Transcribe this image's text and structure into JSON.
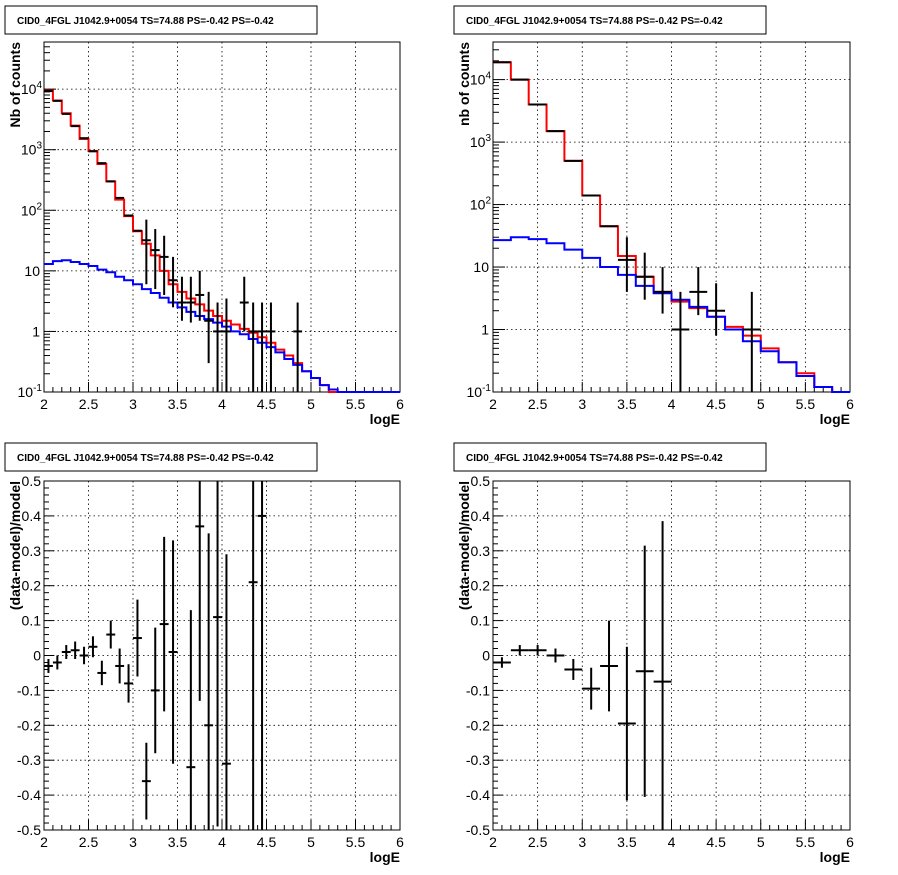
{
  "chart_data": [
    {
      "type": "line",
      "title": "CID0_4FGL J1042.9+0054 TS=74.88 PS=-0.42 PS=-0.42",
      "xlabel": "logE",
      "ylabel": "Nb of counts",
      "xlim": [
        2,
        6
      ],
      "ylim": [
        0.1,
        60000
      ],
      "yscale": "log",
      "grid": true,
      "x_ticks": [
        "2",
        "2.5",
        "3",
        "3.5",
        "4",
        "4.5",
        "5",
        "5.5",
        "6"
      ],
      "y_ticks": [
        "10^-1",
        "1",
        "10",
        "10^2",
        "10^3",
        "10^4"
      ],
      "binwidth": 0.1,
      "series": [
        {
          "color": "#ff0000",
          "kind": "hist",
          "x": [
            2.05,
            2.15,
            2.25,
            2.35,
            2.45,
            2.55,
            2.65,
            2.75,
            2.85,
            2.95,
            3.05,
            3.15,
            3.25,
            3.35,
            3.45,
            3.55,
            3.65,
            3.75,
            3.85,
            3.95,
            4.05,
            4.15,
            4.25,
            4.35,
            4.45,
            4.55,
            4.65,
            4.75,
            4.85,
            4.95,
            5.05,
            5.15,
            5.25,
            5.35,
            5.45,
            5.55,
            5.65,
            5.75,
            5.85,
            5.95
          ],
          "values": [
            9500,
            6500,
            4000,
            2500,
            1500,
            950,
            580,
            300,
            150,
            80,
            45,
            28,
            18,
            10,
            6,
            4.5,
            3.5,
            2.8,
            2.2,
            1.8,
            1.5,
            1.3,
            1.1,
            0.95,
            0.8,
            0.65,
            0.5,
            0.4,
            0.3,
            0.22,
            0.17,
            0.13,
            0.1,
            0.1,
            0.1,
            0.1,
            0.1,
            0.1,
            0.1,
            0.1
          ]
        },
        {
          "color": "#0000ff",
          "kind": "hist",
          "x": [
            2.05,
            2.15,
            2.25,
            2.35,
            2.45,
            2.55,
            2.65,
            2.75,
            2.85,
            2.95,
            3.05,
            3.15,
            3.25,
            3.35,
            3.45,
            3.55,
            3.65,
            3.75,
            3.85,
            3.95,
            4.05,
            4.15,
            4.25,
            4.35,
            4.45,
            4.55,
            4.65,
            4.75,
            4.85,
            4.95,
            5.05,
            5.15,
            5.25,
            5.35,
            5.45,
            5.55,
            5.65,
            5.75,
            5.85,
            5.95
          ],
          "values": [
            13,
            14.5,
            15,
            14,
            13,
            12,
            10.5,
            9.5,
            8,
            7,
            6,
            5,
            4.3,
            3.6,
            3,
            2.5,
            2.1,
            1.8,
            1.6,
            1.4,
            1.2,
            1.0,
            0.9,
            0.75,
            0.65,
            0.55,
            0.45,
            0.35,
            0.28,
            0.22,
            0.17,
            0.13,
            0.11,
            0.1,
            0.1,
            0.1,
            0.1,
            0.1,
            0.1,
            0.1
          ]
        },
        {
          "color": "#000000",
          "kind": "errorbar",
          "x": [
            3.15,
            3.25,
            3.35,
            3.45,
            3.55,
            3.65,
            3.75,
            3.85,
            3.95,
            4.05,
            4.25,
            4.35,
            4.45,
            4.55,
            4.85
          ],
          "values": [
            32,
            22,
            17,
            7,
            3,
            3,
            4,
            1.5,
            1,
            1,
            3,
            1,
            1,
            1,
            1
          ],
          "err_lo": [
            26,
            17,
            13,
            4.5,
            1.5,
            1.6,
            2.5,
            1.2,
            0.9,
            0.9,
            2,
            0.9,
            0.9,
            0.9,
            0.9
          ],
          "err_hi": [
            38,
            27,
            21,
            10,
            5,
            5,
            6,
            3,
            2,
            2.5,
            5,
            2,
            2,
            2,
            2
          ]
        }
      ],
      "upper_points": {
        "x": [
          2.05,
          2.15,
          2.25,
          2.35,
          2.45,
          2.55,
          2.65,
          2.75,
          2.85,
          2.95,
          3.05
        ],
        "values": [
          9300,
          6400,
          3900,
          2450,
          1550,
          940,
          600,
          300,
          160,
          82,
          46
        ]
      }
    },
    {
      "type": "line",
      "title": "CID0_4FGL J1042.9+0054 TS=74.88 PS=-0.42 PS=-0.42",
      "xlabel": "logE",
      "ylabel": "nb of counts",
      "xlim": [
        2,
        6
      ],
      "ylim": [
        0.1,
        40000
      ],
      "yscale": "log",
      "grid": true,
      "x_ticks": [
        "2",
        "2.5",
        "3",
        "3.5",
        "4",
        "4.5",
        "5",
        "5.5",
        "6"
      ],
      "y_ticks": [
        "10^-1",
        "1",
        "10",
        "10^2",
        "10^3",
        "10^4"
      ],
      "binwidth": 0.2,
      "series": [
        {
          "color": "#ff0000",
          "kind": "hist",
          "x": [
            2.1,
            2.3,
            2.5,
            2.7,
            2.9,
            3.1,
            3.3,
            3.5,
            3.7,
            3.9,
            4.1,
            4.3,
            4.5,
            4.7,
            4.9,
            5.1,
            5.3,
            5.5,
            5.7,
            5.9
          ],
          "values": [
            19000,
            10000,
            4000,
            1500,
            500,
            140,
            45,
            15,
            7,
            4,
            2.8,
            2.2,
            1.6,
            1.1,
            0.8,
            0.5,
            0.3,
            0.2,
            0.12,
            0.1
          ]
        },
        {
          "color": "#0000ff",
          "kind": "hist",
          "x": [
            2.1,
            2.3,
            2.5,
            2.7,
            2.9,
            3.1,
            3.3,
            3.5,
            3.7,
            3.9,
            4.1,
            4.3,
            4.5,
            4.7,
            4.9,
            5.1,
            5.3,
            5.5,
            5.7,
            5.9
          ],
          "values": [
            27,
            30,
            28,
            24,
            19,
            14,
            10,
            7.5,
            5,
            3.8,
            3,
            2.3,
            1.6,
            1.0,
            0.65,
            0.45,
            0.3,
            0.18,
            0.12,
            0.1
          ]
        },
        {
          "color": "#000000",
          "kind": "errorbar",
          "x": [
            3.5,
            3.7,
            3.9,
            4.1,
            4.3,
            4.5,
            4.9
          ],
          "values": [
            13,
            7,
            4,
            1,
            4,
            2,
            1
          ],
          "err_lo": [
            9,
            4,
            2.2,
            0.9,
            2.3,
            1.2,
            0.9
          ],
          "err_hi": [
            17,
            10,
            6,
            3,
            6,
            3.5,
            3
          ]
        }
      ],
      "upper_points": {
        "x": [
          2.1,
          2.3,
          2.5,
          2.7,
          2.9,
          3.1,
          3.3
        ],
        "values": [
          19000,
          10000,
          4000,
          1500,
          500,
          140,
          45
        ]
      }
    },
    {
      "type": "scatter",
      "title": "CID0_4FGL J1042.9+0054 TS=74.88 PS=-0.42 PS=-0.42",
      "xlabel": "logE",
      "ylabel": "(data-model)/model",
      "xlim": [
        2,
        6
      ],
      "ylim": [
        -0.5,
        0.5
      ],
      "grid": true,
      "x_ticks": [
        "2",
        "2.5",
        "3",
        "3.5",
        "4",
        "4.5",
        "5",
        "5.5",
        "6"
      ],
      "y_ticks": [
        "-0.5",
        "-0.4",
        "-0.3",
        "-0.2",
        "-0.1",
        "0",
        "0.1",
        "0.2",
        "0.3",
        "0.4",
        "0.5"
      ],
      "binwidth": 0.1,
      "series": [
        {
          "color": "#000000",
          "kind": "errorbar",
          "x": [
            2.05,
            2.15,
            2.25,
            2.35,
            2.45,
            2.55,
            2.65,
            2.75,
            2.85,
            2.95,
            3.05,
            3.15,
            3.25,
            3.35,
            3.45,
            3.65,
            3.75,
            3.85,
            3.95,
            4.05,
            4.35,
            4.45
          ],
          "values": [
            -0.03,
            -0.02,
            0.01,
            0.015,
            0.0,
            0.025,
            -0.05,
            0.06,
            -0.03,
            -0.08,
            0.05,
            -0.36,
            -0.1,
            0.09,
            0.01,
            -0.32,
            0.37,
            -0.2,
            0.11,
            -0.31,
            0.21,
            0.4
          ],
          "err": [
            0.02,
            0.02,
            0.02,
            0.025,
            0.025,
            0.03,
            0.035,
            0.04,
            0.05,
            0.055,
            0.11,
            0.11,
            0.18,
            0.25,
            0.32,
            0.45,
            0.5,
            0.55,
            0.6,
            0.6,
            0.9,
            0.9
          ]
        }
      ]
    },
    {
      "type": "scatter",
      "title": "CID0_4FGL J1042.9+0054 TS=74.88 PS=-0.42 PS=-0.42",
      "xlabel": "logE",
      "ylabel": "(data-model)/model",
      "xlim": [
        2,
        6
      ],
      "ylim": [
        -0.5,
        0.5
      ],
      "grid": true,
      "x_ticks": [
        "2",
        "2.5",
        "3",
        "3.5",
        "4",
        "4.5",
        "5",
        "5.5",
        "6"
      ],
      "y_ticks": [
        "-0.5",
        "-0.4",
        "-0.3",
        "-0.2",
        "-0.1",
        "0",
        "0.1",
        "0.2",
        "0.3",
        "0.4",
        "0.5"
      ],
      "binwidth": 0.2,
      "series": [
        {
          "color": "#000000",
          "kind": "errorbar",
          "x": [
            2.1,
            2.3,
            2.5,
            2.7,
            2.9,
            3.1,
            3.3,
            3.5,
            3.7,
            3.9
          ],
          "values": [
            -0.02,
            0.015,
            0.015,
            0.0,
            -0.04,
            -0.095,
            -0.03,
            -0.195,
            -0.045,
            -0.075
          ],
          "err": [
            0.015,
            0.015,
            0.015,
            0.02,
            0.03,
            0.06,
            0.13,
            0.22,
            0.36,
            0.46
          ]
        }
      ]
    }
  ]
}
